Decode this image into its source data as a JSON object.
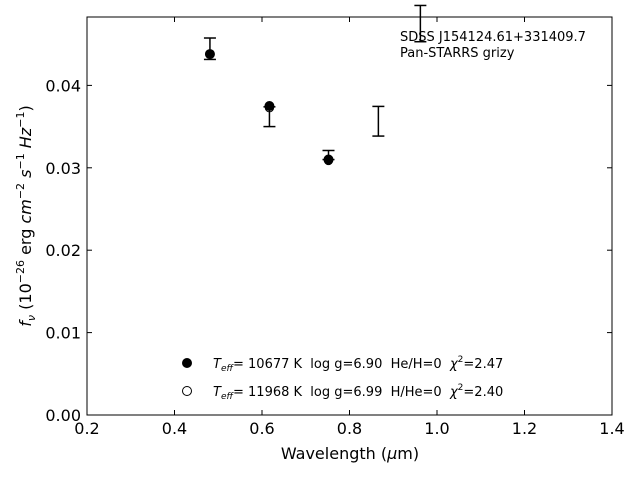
{
  "chart_data": {
    "type": "scatter",
    "annotations": [
      "SDSS J154124.61+331409.7",
      "Pan-STARRS grizy"
    ],
    "xlabel": "Wavelength (μm)",
    "ylabel": "f_ν (10^-26 erg cm^-2 s^-1 Hz^-1)",
    "xlim": [
      0.2,
      1.4
    ],
    "ylim": [
      0.0,
      0.0483
    ],
    "x_ticks": [
      0.2,
      0.4,
      0.6,
      0.8,
      1.0,
      1.2,
      1.4
    ],
    "x_tick_labels": [
      "0.2",
      "0.4",
      "0.6",
      "0.8",
      "1.0",
      "1.2",
      "1.4"
    ],
    "y_ticks": [
      0.0,
      0.01,
      0.02,
      0.03,
      0.04
    ],
    "y_tick_labels": [
      "0.00",
      "0.01",
      "0.02",
      "0.03",
      "0.04"
    ],
    "grid": false,
    "legend_position": "bottom-center",
    "observed": [
      {
        "x": 0.481,
        "y": 0.04445,
        "err": 0.0013
      },
      {
        "x": 0.617,
        "y": 0.0362,
        "err": 0.0012
      },
      {
        "x": 0.752,
        "y": 0.03155,
        "err": 0.00055
      },
      {
        "x": 0.866,
        "y": 0.03565,
        "err": 0.0018
      },
      {
        "x": 0.962,
        "y": 0.0475,
        "err": 0.0022
      }
    ],
    "series": [
      {
        "name": "Teff= 10677 K  log g=6.90  He/H=0  χ²=2.47",
        "marker": "filled",
        "x": [
          0.481,
          0.617,
          0.752
        ],
        "y": [
          0.0438,
          0.0375,
          0.031
        ]
      },
      {
        "name": "Teff= 11968 K  log g=6.99  H/He=0  χ²=2.40",
        "marker": "open",
        "x": [
          0.481,
          0.617,
          0.752
        ],
        "y": [
          0.0438,
          0.0373,
          0.0309
        ]
      }
    ],
    "legend": {
      "entries": [
        {
          "teff_sym": "T",
          "teff_sub": "eff",
          "rest": "= 10677 K  log g=6.90  He/H=0  ",
          "chi": "χ",
          "chi_sup": "2",
          "chi_val": "=2.47"
        },
        {
          "teff_sym": "T",
          "teff_sub": "eff",
          "rest": "= 11968 K  log g=6.99  H/He=0  ",
          "chi": "χ",
          "chi_sup": "2",
          "chi_val": "=2.40"
        }
      ]
    }
  }
}
